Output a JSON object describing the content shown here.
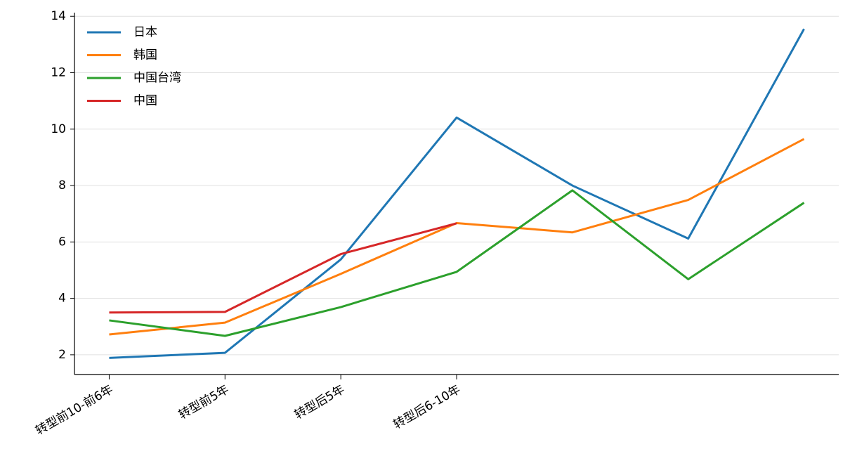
{
  "chart_data": {
    "type": "line",
    "categories": [
      "转型前10-前6年",
      "转型前5年",
      "转型后5年",
      "转型后6-10年",
      null,
      null,
      null
    ],
    "series": [
      {
        "name": "日本",
        "color": "#1f77b4",
        "values": [
          1.89,
          2.07,
          5.38,
          10.41,
          8.0,
          6.12,
          13.55
        ]
      },
      {
        "name": "韩国",
        "color": "#ff7f0e",
        "values": [
          2.72,
          3.14,
          4.87,
          6.67,
          6.34,
          7.49,
          9.65
        ]
      },
      {
        "name": "中国台湾",
        "color": "#2ca02c",
        "values": [
          3.22,
          2.67,
          3.69,
          4.94,
          7.83,
          4.68,
          7.39
        ]
      },
      {
        "name": "中国",
        "color": "#d62728",
        "values": [
          3.5,
          3.52,
          5.57,
          6.66,
          null,
          null,
          null
        ]
      }
    ],
    "ylim": [
      1.3,
      14.13
    ],
    "yticks": [
      2,
      4,
      6,
      8,
      10,
      12,
      14
    ],
    "grid": true,
    "legend": "upper-left"
  }
}
